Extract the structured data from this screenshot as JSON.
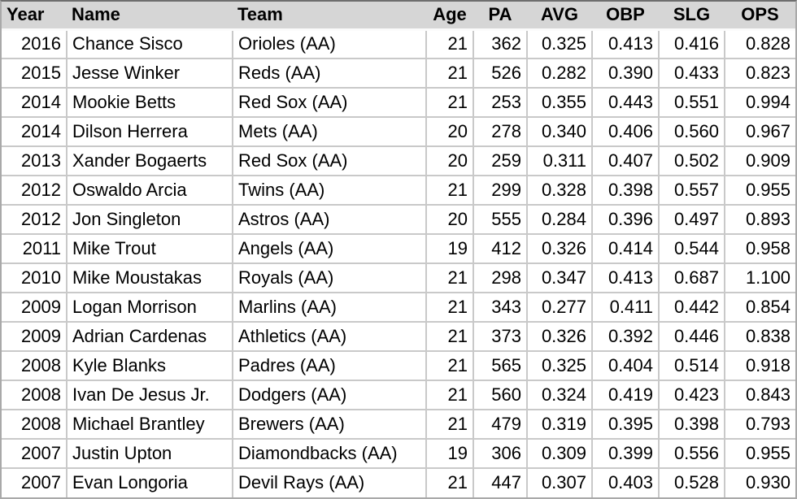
{
  "table": {
    "columns": [
      {
        "key": "year",
        "label": "Year"
      },
      {
        "key": "name",
        "label": "Name"
      },
      {
        "key": "team",
        "label": "Team"
      },
      {
        "key": "age",
        "label": "Age"
      },
      {
        "key": "pa",
        "label": "PA"
      },
      {
        "key": "avg",
        "label": "AVG"
      },
      {
        "key": "obp",
        "label": "OBP"
      },
      {
        "key": "slg",
        "label": "SLG"
      },
      {
        "key": "ops",
        "label": "OPS"
      }
    ],
    "rows": [
      {
        "year": "2016",
        "name": "Chance Sisco",
        "team": "Orioles (AA)",
        "age": "21",
        "pa": "362",
        "avg": "0.325",
        "obp": "0.413",
        "slg": "0.416",
        "ops": "0.828"
      },
      {
        "year": "2015",
        "name": "Jesse Winker",
        "team": "Reds (AA)",
        "age": "21",
        "pa": "526",
        "avg": "0.282",
        "obp": "0.390",
        "slg": "0.433",
        "ops": "0.823"
      },
      {
        "year": "2014",
        "name": "Mookie Betts",
        "team": "Red Sox (AA)",
        "age": "21",
        "pa": "253",
        "avg": "0.355",
        "obp": "0.443",
        "slg": "0.551",
        "ops": "0.994"
      },
      {
        "year": "2014",
        "name": "Dilson Herrera",
        "team": "Mets (AA)",
        "age": "20",
        "pa": "278",
        "avg": "0.340",
        "obp": "0.406",
        "slg": "0.560",
        "ops": "0.967"
      },
      {
        "year": "2013",
        "name": "Xander Bogaerts",
        "team": "Red Sox (AA)",
        "age": "20",
        "pa": "259",
        "avg": "0.311",
        "obp": "0.407",
        "slg": "0.502",
        "ops": "0.909"
      },
      {
        "year": "2012",
        "name": "Oswaldo Arcia",
        "team": "Twins (AA)",
        "age": "21",
        "pa": "299",
        "avg": "0.328",
        "obp": "0.398",
        "slg": "0.557",
        "ops": "0.955"
      },
      {
        "year": "2012",
        "name": "Jon Singleton",
        "team": "Astros (AA)",
        "age": "20",
        "pa": "555",
        "avg": "0.284",
        "obp": "0.396",
        "slg": "0.497",
        "ops": "0.893"
      },
      {
        "year": "2011",
        "name": "Mike Trout",
        "team": "Angels (AA)",
        "age": "19",
        "pa": "412",
        "avg": "0.326",
        "obp": "0.414",
        "slg": "0.544",
        "ops": "0.958"
      },
      {
        "year": "2010",
        "name": "Mike Moustakas",
        "team": "Royals (AA)",
        "age": "21",
        "pa": "298",
        "avg": "0.347",
        "obp": "0.413",
        "slg": "0.687",
        "ops": "1.100"
      },
      {
        "year": "2009",
        "name": "Logan Morrison",
        "team": "Marlins (AA)",
        "age": "21",
        "pa": "343",
        "avg": "0.277",
        "obp": "0.411",
        "slg": "0.442",
        "ops": "0.854"
      },
      {
        "year": "2009",
        "name": "Adrian Cardenas",
        "team": "Athletics (AA)",
        "age": "21",
        "pa": "373",
        "avg": "0.326",
        "obp": "0.392",
        "slg": "0.446",
        "ops": "0.838"
      },
      {
        "year": "2008",
        "name": "Kyle Blanks",
        "team": "Padres (AA)",
        "age": "21",
        "pa": "565",
        "avg": "0.325",
        "obp": "0.404",
        "slg": "0.514",
        "ops": "0.918"
      },
      {
        "year": "2008",
        "name": "Ivan De Jesus Jr.",
        "team": "Dodgers (AA)",
        "age": "21",
        "pa": "560",
        "avg": "0.324",
        "obp": "0.419",
        "slg": "0.423",
        "ops": "0.843"
      },
      {
        "year": "2008",
        "name": "Michael Brantley",
        "team": "Brewers (AA)",
        "age": "21",
        "pa": "479",
        "avg": "0.319",
        "obp": "0.395",
        "slg": "0.398",
        "ops": "0.793"
      },
      {
        "year": "2007",
        "name": "Justin Upton",
        "team": "Diamondbacks (AA)",
        "age": "19",
        "pa": "306",
        "avg": "0.309",
        "obp": "0.399",
        "slg": "0.556",
        "ops": "0.955"
      },
      {
        "year": "2007",
        "name": "Evan Longoria",
        "team": "Devil Rays (AA)",
        "age": "21",
        "pa": "447",
        "avg": "0.307",
        "obp": "0.403",
        "slg": "0.528",
        "ops": "0.930"
      }
    ]
  },
  "colors": {
    "header_bg": "#d6d6d6",
    "gridline": "#c9c9c9",
    "outer_border": "#a9a9a9",
    "outer_border_top": "#6e6e6e",
    "row_bg": "#ffffff",
    "text": "#000000"
  }
}
